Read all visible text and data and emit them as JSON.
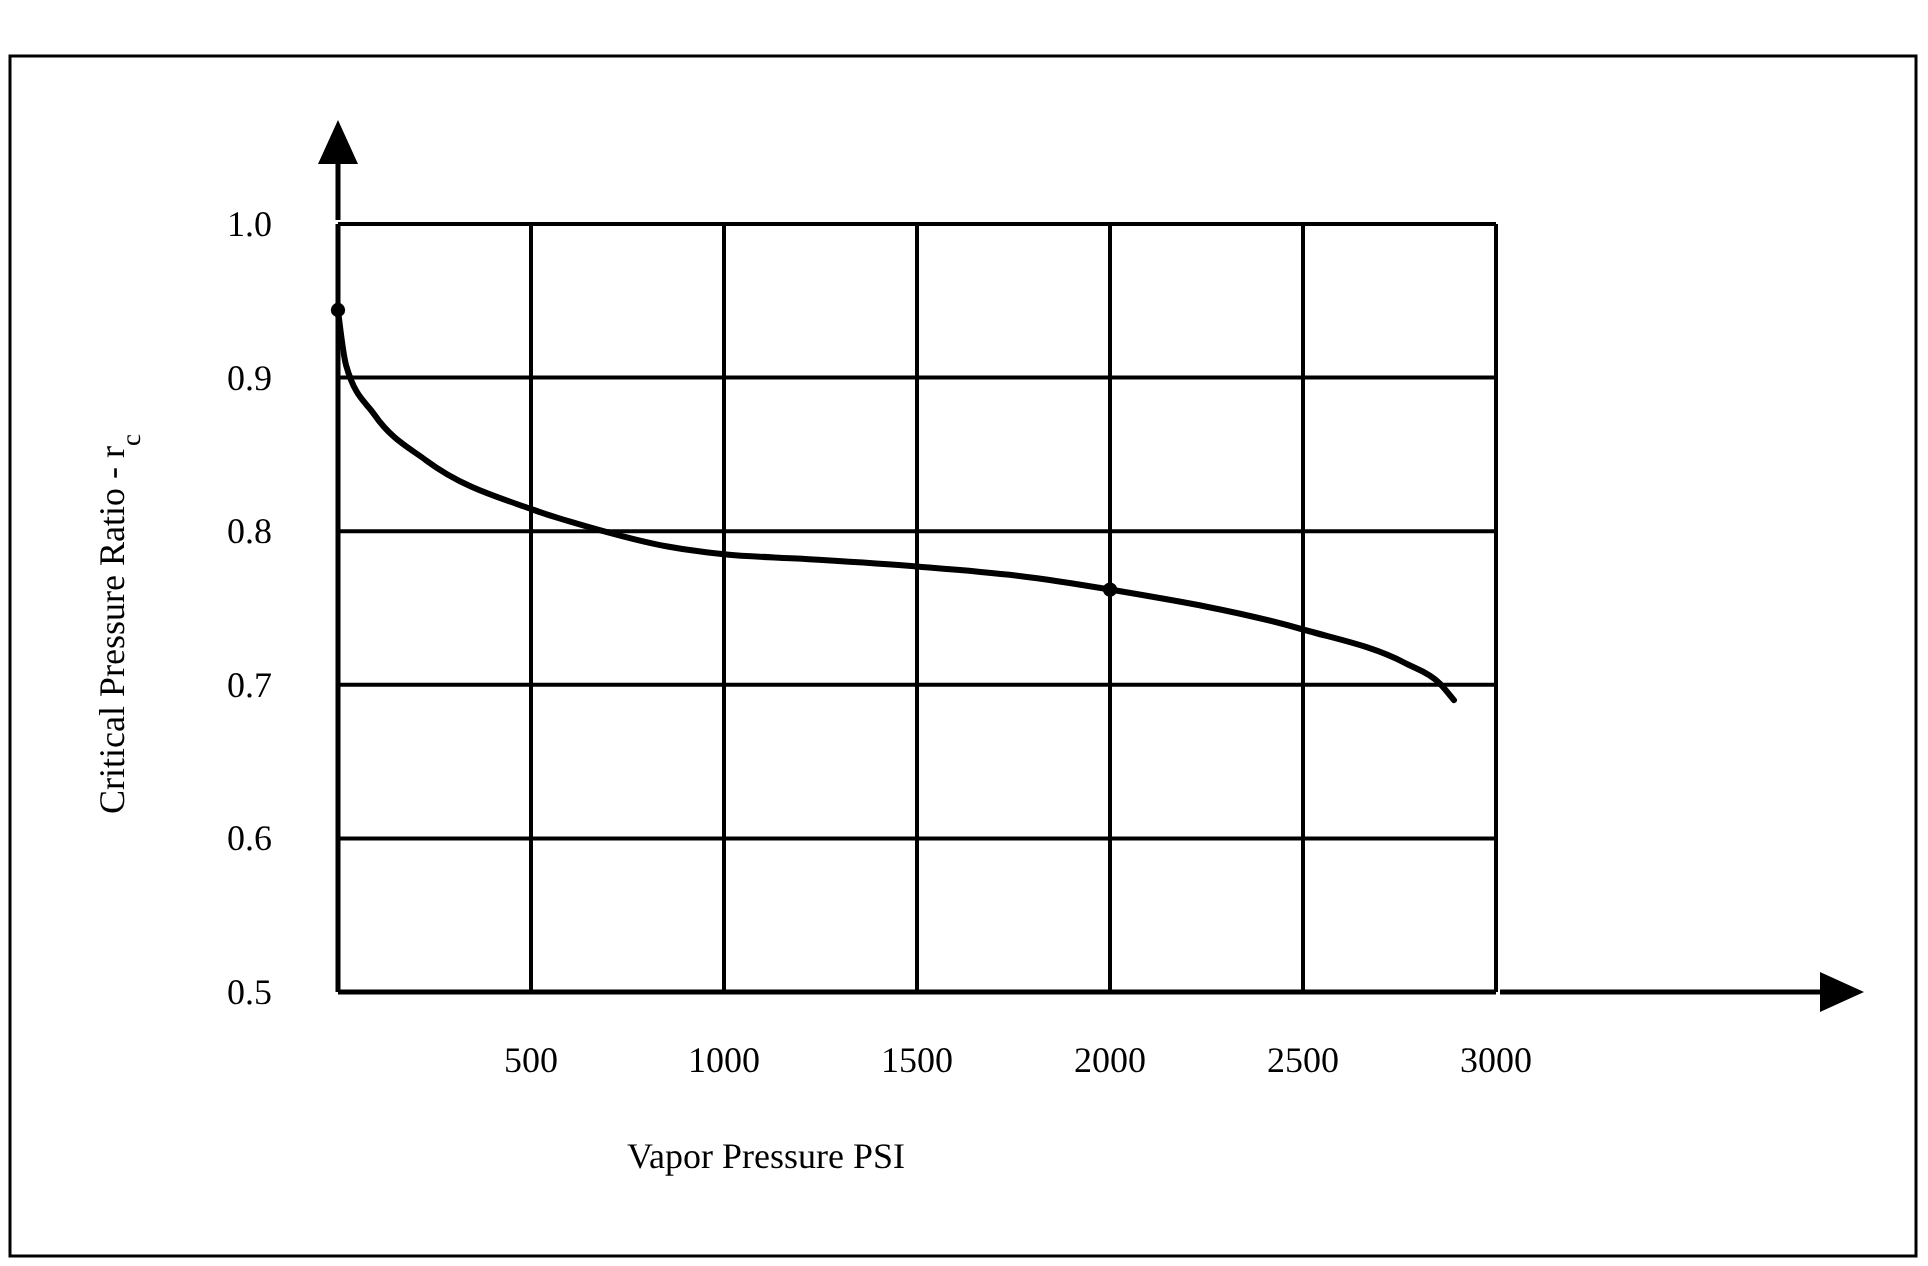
{
  "chart_data": {
    "type": "line",
    "xlabel": "Vapor Pressure PSI",
    "ylabel": "Critical Pressure Ratio - r$_{c}$",
    "xlim": [
      0,
      3000
    ],
    "ylim": [
      0.5,
      1.0
    ],
    "xticks": [
      500,
      1000,
      1500,
      2000,
      2500,
      3000
    ],
    "yticks": [
      {
        "value": 0.5,
        "label": "0.5"
      },
      {
        "value": 0.6,
        "label": "0.6"
      },
      {
        "value": 0.7,
        "label": "0.7"
      },
      {
        "value": 0.8,
        "label": "0.8"
      },
      {
        "value": 0.9,
        "label": "0.9"
      },
      {
        "value": 1.0,
        "label": "1.0"
      }
    ],
    "grid": true,
    "line_style": "solid",
    "series": [
      {
        "color": "#000000",
        "marker": "none",
        "x": [
          0,
          21,
          94,
          229,
          505,
          646,
          854,
          1000,
          1203,
          1500,
          1760,
          2000,
          2500,
          2766,
          2854,
          2891
        ],
        "values": [
          0.944,
          0.908,
          0.876,
          0.846,
          0.814,
          0.803,
          0.79,
          0.785,
          0.782,
          0.777,
          0.771,
          0.762,
          0.736,
          0.714,
          0.701,
          0.69
        ]
      },
      {
        "type": "scatter",
        "color": "#000000",
        "marker": "circle",
        "x": [
          0,
          2000
        ],
        "values": [
          0.944,
          0.762
        ]
      }
    ]
  }
}
